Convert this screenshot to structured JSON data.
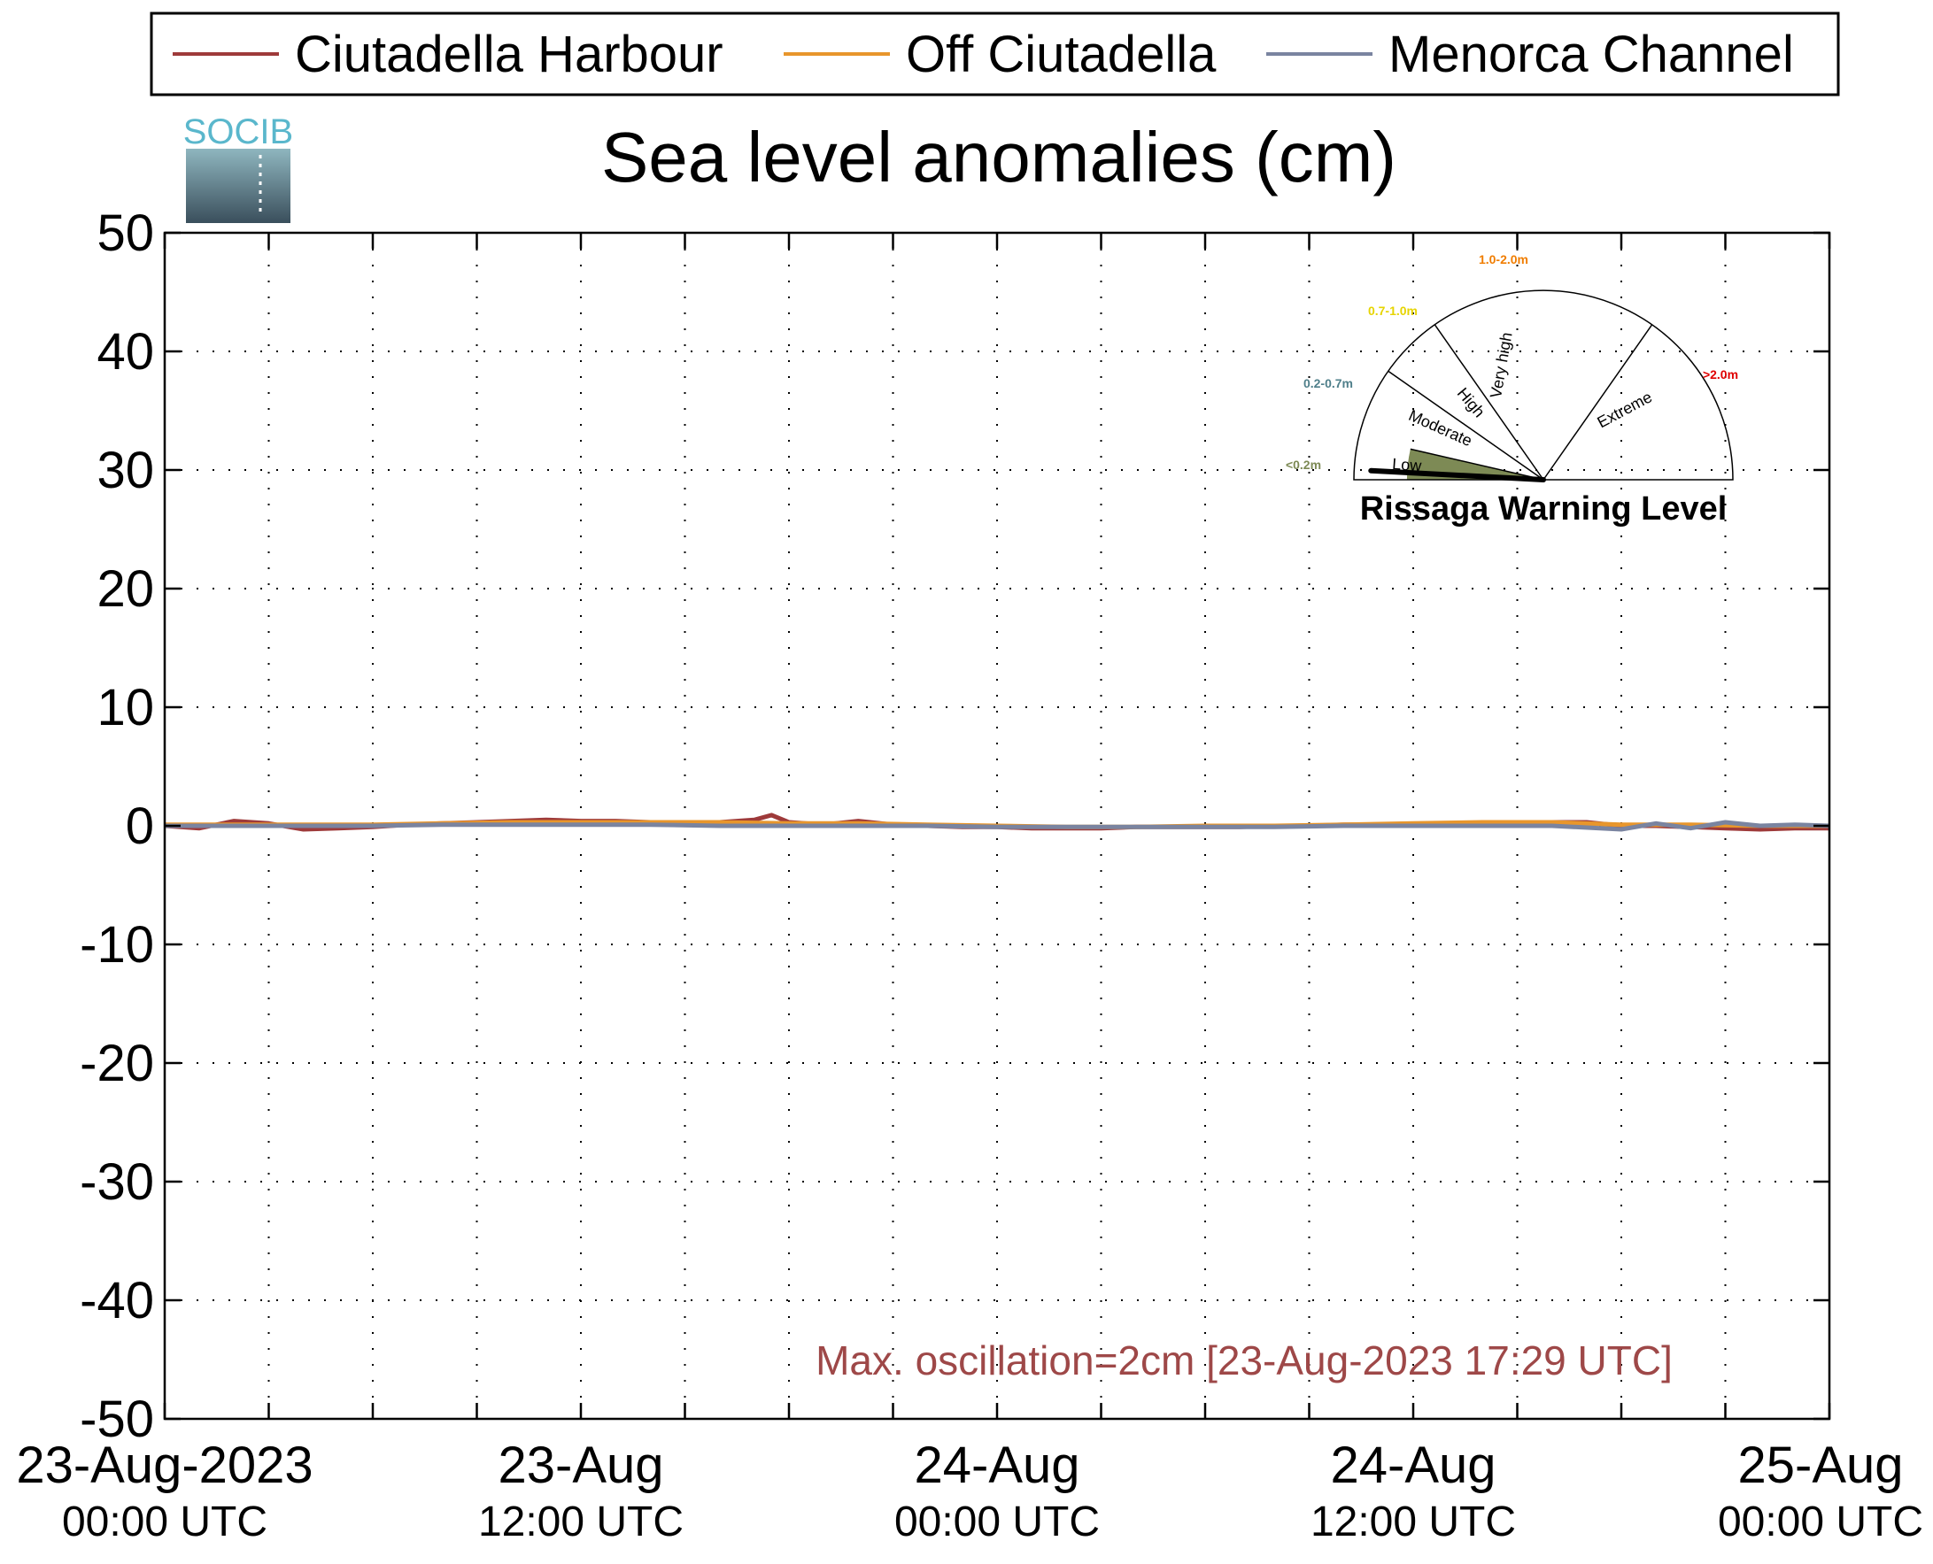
{
  "logo": {
    "text": "SOCIB"
  },
  "chart_data": {
    "type": "line",
    "title": "Sea level anomalies (cm)",
    "xlabel": "",
    "ylabel": "",
    "ylim": [
      -50,
      50
    ],
    "yticks": [
      50,
      40,
      30,
      20,
      10,
      0,
      -10,
      -20,
      -30,
      -40,
      -50
    ],
    "xlim": [
      "2023-08-23 00:00",
      "2023-08-25 00:00"
    ],
    "x_unit": "hours since 23-Aug-2023 00:00 UTC",
    "xticks": [
      {
        "date": "23-Aug-2023",
        "time": "00:00 UTC"
      },
      {
        "date": "23-Aug",
        "time": "12:00 UTC"
      },
      {
        "date": "24-Aug",
        "time": "00:00 UTC"
      },
      {
        "date": "24-Aug",
        "time": "12:00 UTC"
      },
      {
        "date": "25-Aug",
        "time": "00:00 UTC"
      }
    ],
    "grid": true,
    "legend_position": "top",
    "series": [
      {
        "name": "Ciutadella Harbour",
        "color": "#9e3a3a",
        "x": [
          0,
          1,
          2,
          3,
          4,
          5,
          6,
          7,
          8,
          9,
          10,
          11,
          12,
          13,
          14,
          15,
          16,
          17,
          17.5,
          18,
          19,
          20,
          21,
          22,
          23,
          24,
          25,
          26,
          27,
          28,
          29,
          30,
          31,
          32,
          33,
          34,
          35,
          36,
          37,
          38,
          39,
          40,
          41,
          42,
          43,
          44,
          45,
          46,
          47,
          48
        ],
        "y": [
          0.0,
          -0.2,
          0.4,
          0.2,
          -0.3,
          -0.2,
          -0.1,
          0.1,
          0.2,
          0.3,
          0.4,
          0.5,
          0.4,
          0.4,
          0.3,
          0.2,
          0.3,
          0.5,
          0.9,
          0.3,
          0.1,
          0.4,
          0.1,
          0.0,
          -0.1,
          -0.1,
          -0.2,
          -0.2,
          -0.2,
          -0.1,
          -0.1,
          -0.1,
          -0.1,
          0.0,
          0.0,
          0.1,
          0.1,
          0.1,
          0.2,
          0.2,
          0.2,
          0.3,
          0.3,
          0.0,
          0.0,
          -0.1,
          -0.2,
          -0.3,
          -0.2,
          -0.2
        ]
      },
      {
        "name": "Off Ciutadella",
        "color": "#e8962c",
        "x": [
          0,
          2,
          4,
          6,
          8,
          10,
          12,
          14,
          16,
          18,
          20,
          22,
          24,
          26,
          28,
          30,
          32,
          34,
          36,
          38,
          40,
          42,
          44,
          46,
          48
        ],
        "y": [
          0.1,
          0.1,
          0.1,
          0.1,
          0.2,
          0.3,
          0.3,
          0.3,
          0.3,
          0.2,
          0.2,
          0.1,
          0.0,
          -0.1,
          -0.1,
          0.0,
          0.0,
          0.1,
          0.2,
          0.3,
          0.3,
          0.1,
          0.1,
          0.0,
          0.0
        ]
      },
      {
        "name": "Menorca Channel",
        "color": "#7a84a0",
        "x": [
          0,
          2,
          4,
          6,
          8,
          10,
          12,
          14,
          16,
          18,
          20,
          22,
          24,
          26,
          28,
          30,
          32,
          34,
          36,
          38,
          40,
          42,
          43,
          44,
          45,
          46,
          47,
          48
        ],
        "y": [
          0.0,
          0.0,
          0.0,
          0.0,
          0.1,
          0.1,
          0.1,
          0.1,
          0.0,
          0.0,
          0.0,
          0.0,
          -0.1,
          -0.1,
          -0.1,
          -0.1,
          -0.1,
          0.0,
          0.0,
          0.0,
          0.0,
          -0.3,
          0.2,
          -0.2,
          0.3,
          0.0,
          0.1,
          0.0
        ]
      }
    ],
    "annotation": "Max. oscillation=2cm [23-Aug-2023 17:29 UTC]",
    "annotation_color": "#9e4848"
  },
  "gauge": {
    "title": "Rissaga Warning Level",
    "current_level": "Low",
    "segments": [
      {
        "name": "Low",
        "range": "<0.2m",
        "color": "#7d8a55"
      },
      {
        "name": "Moderate",
        "range": "0.2-0.7m",
        "color": "#4f7f8a"
      },
      {
        "name": "High",
        "range": "0.7-1.0m",
        "color": "#e6d400"
      },
      {
        "name": "Very high",
        "range": "1.0-2.0m",
        "color": "#f07d00"
      },
      {
        "name": "Extreme",
        "range": ">2.0m",
        "color": "#e00000"
      }
    ]
  }
}
